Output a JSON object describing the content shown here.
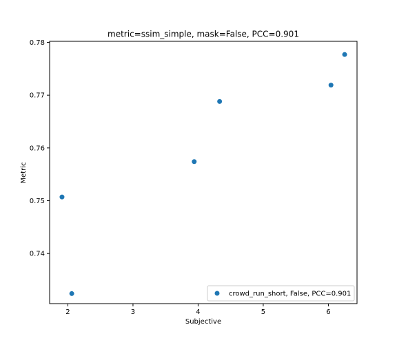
{
  "chart_data": {
    "type": "scatter",
    "title": "metric=ssim_simple, mask=False, PCC=0.901",
    "xlabel": "Subjective",
    "ylabel": "Metric",
    "xlim": [
      1.72,
      6.44
    ],
    "ylim": [
      0.7305,
      0.7802
    ],
    "xticks": [
      "2",
      "3",
      "4",
      "5",
      "6"
    ],
    "yticks": [
      "0.74",
      "0.75",
      "0.76",
      "0.77",
      "0.78"
    ],
    "grid": false,
    "legend_position": "lower-right",
    "series": [
      {
        "name": "crowd_run_short, False, PCC=0.901",
        "color": "#1f77b4",
        "x": [
          1.91,
          2.06,
          3.94,
          4.33,
          6.04,
          6.25
        ],
        "y": [
          0.7507,
          0.7324,
          0.7574,
          0.7688,
          0.7719,
          0.7777
        ]
      }
    ]
  }
}
